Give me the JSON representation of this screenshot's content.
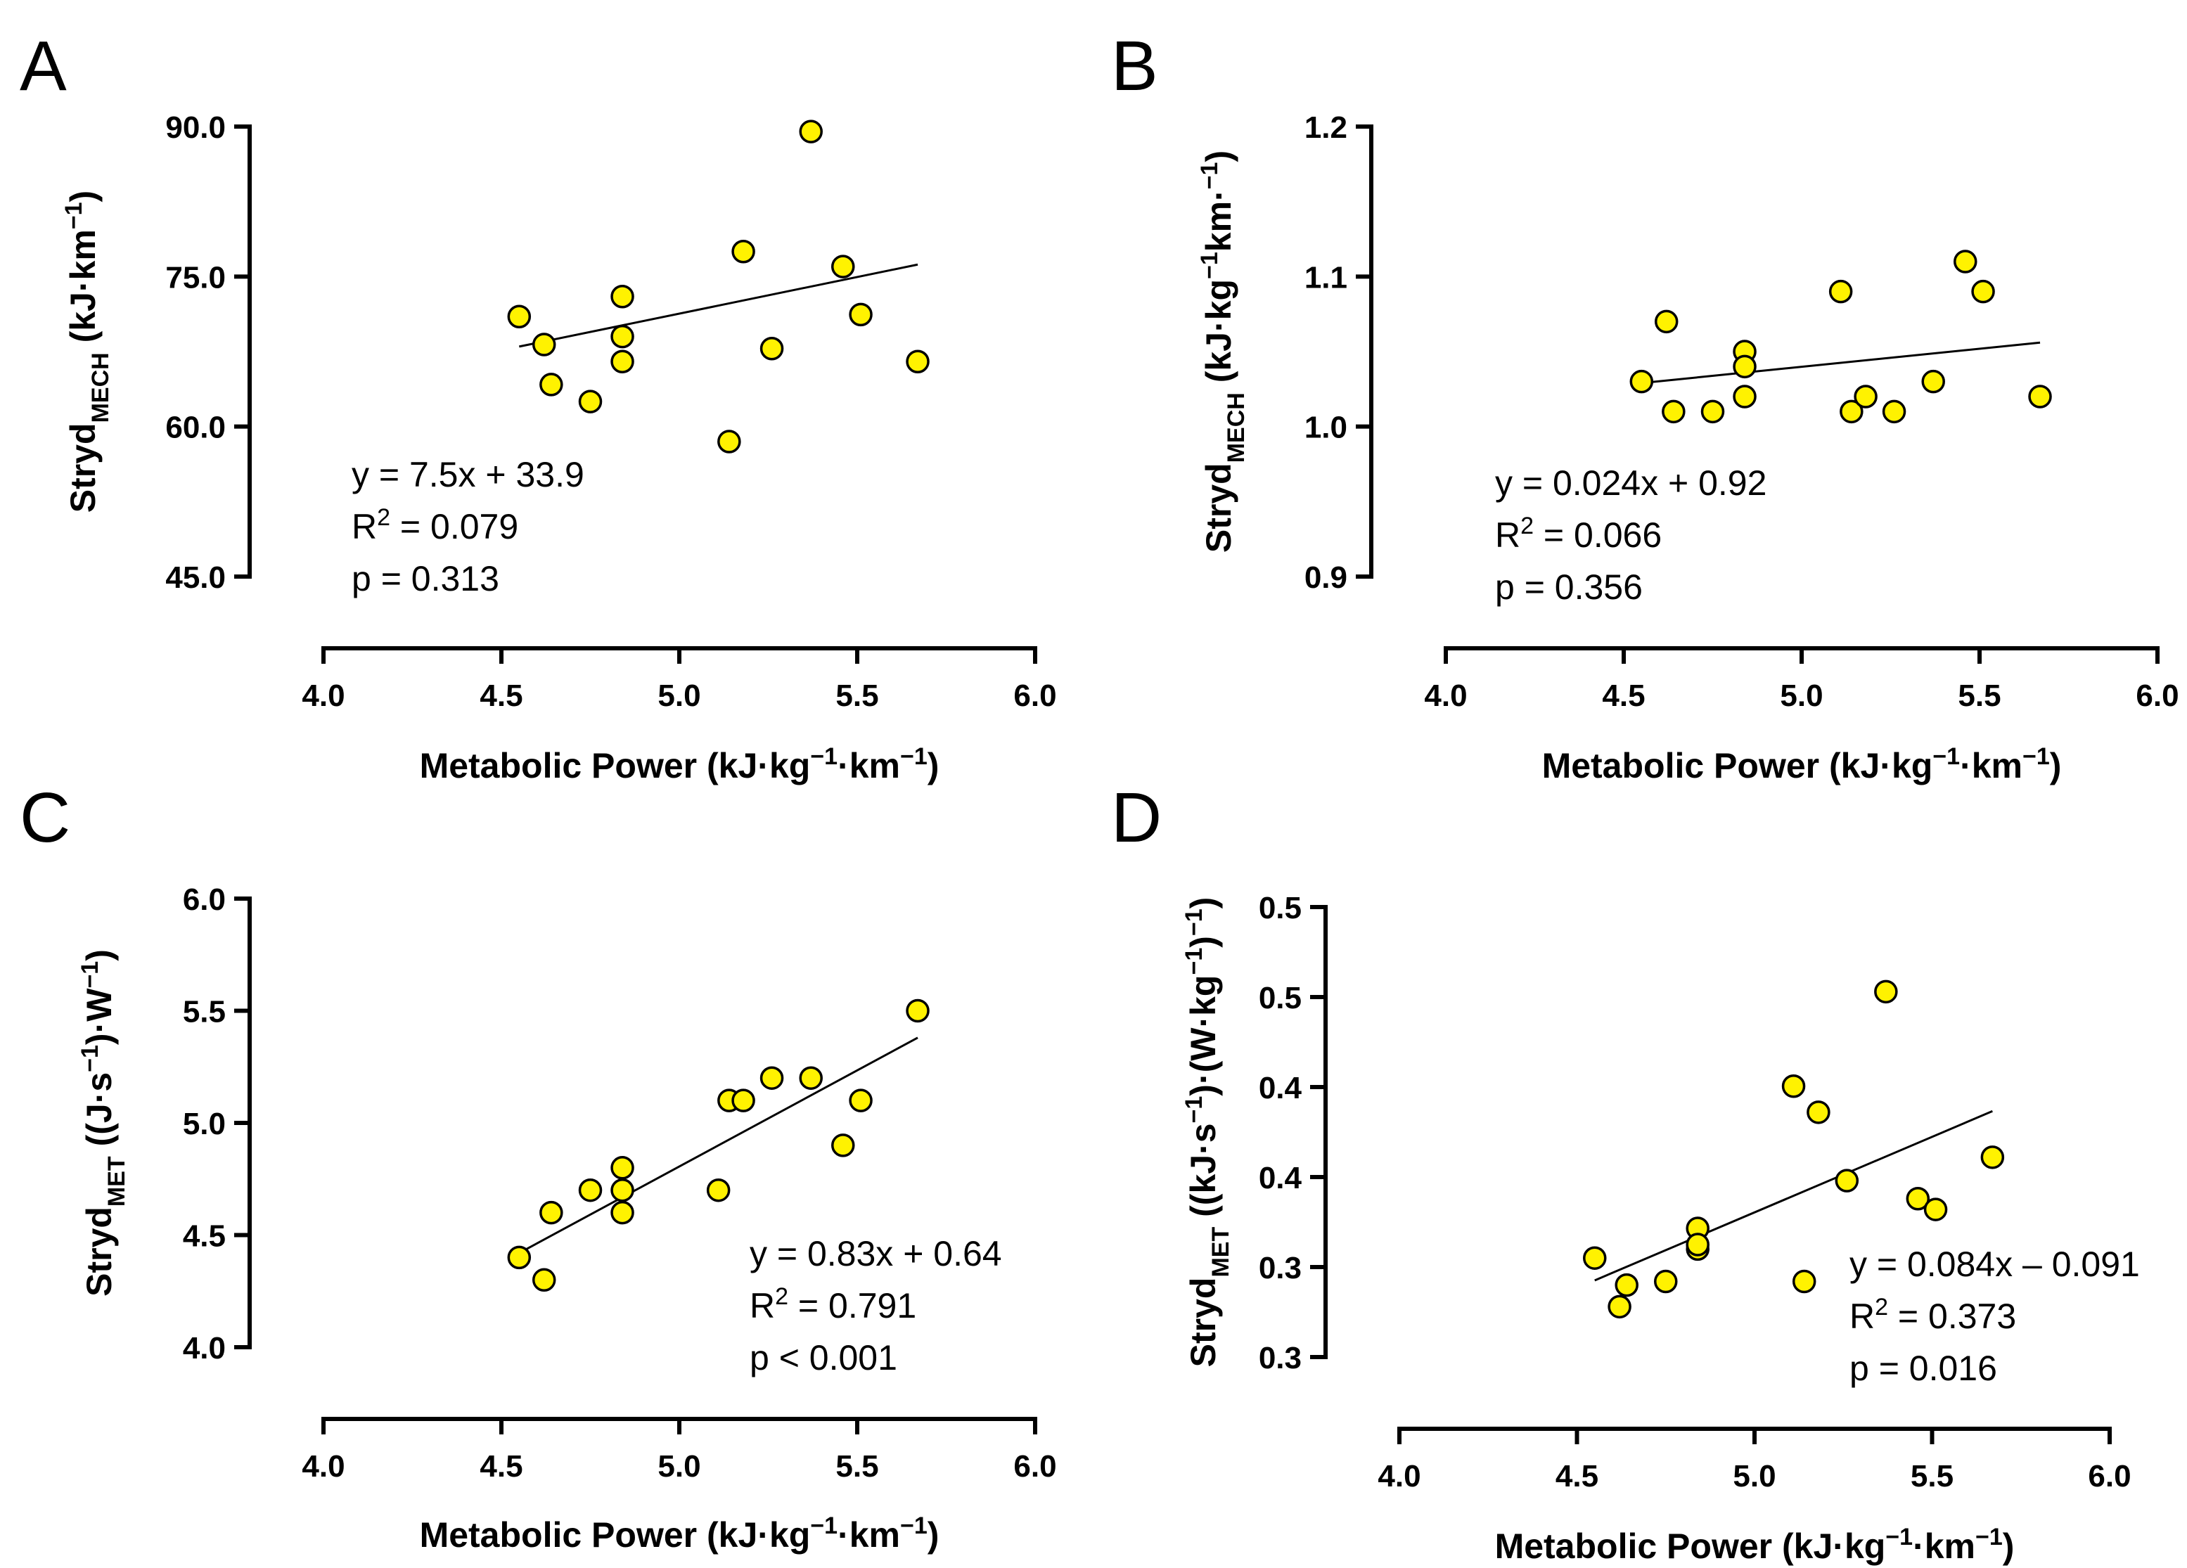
{
  "chart_data": [
    {
      "panel": "A",
      "type": "scatter",
      "xlabel": {
        "pre": "Metabolic Power (kJ",
        "dot1": "·",
        "mid1": "kg",
        "sup1": "−1",
        "dot2": "·",
        "mid2": "km",
        "sup2": "−1",
        "post": ")"
      },
      "ylabel": {
        "base": "Stryd",
        "sub": "MECH",
        "pre": " (kJ",
        "dot1": "·",
        "mid1": "km",
        "sup1": "−1",
        "post": ")"
      },
      "xlim": [
        4.0,
        6.0
      ],
      "ylim": [
        45.0,
        90.0
      ],
      "xticks": [
        "4.0",
        "4.5",
        "5.0",
        "5.5",
        "6.0"
      ],
      "yticks": [
        "45.0",
        "60.0",
        "75.0",
        "90.0"
      ],
      "points": [
        {
          "x": 4.55,
          "y": 71.0
        },
        {
          "x": 4.62,
          "y": 68.2
        },
        {
          "x": 4.64,
          "y": 64.2
        },
        {
          "x": 4.75,
          "y": 62.5
        },
        {
          "x": 4.84,
          "y": 73.0
        },
        {
          "x": 4.84,
          "y": 69.0
        },
        {
          "x": 4.84,
          "y": 66.5
        },
        {
          "x": 5.14,
          "y": 58.5
        },
        {
          "x": 5.18,
          "y": 77.5
        },
        {
          "x": 5.26,
          "y": 67.8
        },
        {
          "x": 5.37,
          "y": 89.5
        },
        {
          "x": 5.46,
          "y": 76.0
        },
        {
          "x": 5.51,
          "y": 71.2
        },
        {
          "x": 5.67,
          "y": 66.5
        }
      ],
      "fit": {
        "x": [
          4.55,
          5.67
        ],
        "y": [
          68.0,
          76.2
        ]
      },
      "annotation": {
        "equation": "y = 7.5x + 33.9",
        "r2_label": "R",
        "r2_sup": "2",
        "r2_value": " = 0.079",
        "p": "p = 0.313"
      }
    },
    {
      "panel": "B",
      "type": "scatter",
      "xlabel": {
        "pre": "Metabolic Power (kJ",
        "dot1": "·",
        "mid1": "kg",
        "sup1": "−1",
        "dot2": "·",
        "mid2": "km",
        "sup2": "−1",
        "post": ")"
      },
      "ylabel": {
        "base": "Stryd",
        "sub": "MECH",
        "pre": " (kJ",
        "dot1": "·",
        "mid1": "kg",
        "sup1": "−1",
        "dot2": "·",
        "mid2": "km",
        "sup2": "−1",
        "post": ")"
      },
      "xlim": [
        4.0,
        6.0
      ],
      "ylim": [
        0.9,
        1.2
      ],
      "xticks": [
        "4.0",
        "4.5",
        "5.0",
        "5.5",
        "6.0"
      ],
      "yticks": [
        "0.9",
        "1.0",
        "1.1",
        "1.2"
      ],
      "points": [
        {
          "x": 4.55,
          "y": 1.03
        },
        {
          "x": 4.62,
          "y": 1.07
        },
        {
          "x": 4.64,
          "y": 1.01
        },
        {
          "x": 4.75,
          "y": 1.01
        },
        {
          "x": 4.84,
          "y": 1.05
        },
        {
          "x": 4.84,
          "y": 1.04
        },
        {
          "x": 4.84,
          "y": 1.02
        },
        {
          "x": 5.11,
          "y": 1.09
        },
        {
          "x": 5.14,
          "y": 1.01
        },
        {
          "x": 5.18,
          "y": 1.02
        },
        {
          "x": 5.26,
          "y": 1.01
        },
        {
          "x": 5.37,
          "y": 1.03
        },
        {
          "x": 5.46,
          "y": 1.11
        },
        {
          "x": 5.51,
          "y": 1.09
        },
        {
          "x": 5.67,
          "y": 1.02
        }
      ],
      "fit": {
        "x": [
          4.55,
          5.67
        ],
        "y": [
          1.029,
          1.056
        ]
      },
      "annotation": {
        "equation": "y = 0.024x + 0.92",
        "r2_label": "R",
        "r2_sup": "2",
        "r2_value": " = 0.066",
        "p": "p = 0.356"
      }
    },
    {
      "panel": "C",
      "type": "scatter",
      "xlabel": {
        "pre": "Metabolic Power (kJ",
        "dot1": "·",
        "mid1": "kg",
        "sup1": "−1",
        "dot2": "·",
        "mid2": "km",
        "sup2": "−1",
        "post": ")"
      },
      "ylabel": {
        "base": "Stryd",
        "sub": "MET",
        "pre": " ((J",
        "dot1": "·",
        "mid1": "s",
        "sup1": "−1",
        "mid2": ")",
        "dot2": "·",
        "mid3": "W",
        "sup2": "−1",
        "post": ")"
      },
      "xlim": [
        4.0,
        6.0
      ],
      "ylim": [
        4.0,
        6.0
      ],
      "xticks": [
        "4.0",
        "4.5",
        "5.0",
        "5.5",
        "6.0"
      ],
      "yticks": [
        "4.0",
        "4.5",
        "5.0",
        "5.5",
        "6.0"
      ],
      "points": [
        {
          "x": 4.55,
          "y": 4.4
        },
        {
          "x": 4.62,
          "y": 4.3
        },
        {
          "x": 4.64,
          "y": 4.6
        },
        {
          "x": 4.75,
          "y": 4.7
        },
        {
          "x": 4.84,
          "y": 4.8
        },
        {
          "x": 4.84,
          "y": 4.7
        },
        {
          "x": 4.84,
          "y": 4.6
        },
        {
          "x": 5.11,
          "y": 4.7
        },
        {
          "x": 5.14,
          "y": 5.1
        },
        {
          "x": 5.18,
          "y": 5.1
        },
        {
          "x": 5.26,
          "y": 5.2
        },
        {
          "x": 5.37,
          "y": 5.2
        },
        {
          "x": 5.46,
          "y": 4.9
        },
        {
          "x": 5.51,
          "y": 5.1
        },
        {
          "x": 5.67,
          "y": 5.5
        }
      ],
      "fit": {
        "x": [
          4.55,
          5.67
        ],
        "y": [
          4.42,
          5.38
        ]
      },
      "annotation": {
        "equation": "y = 0.83x + 0.64",
        "r2_label": "R",
        "r2_sup": "2",
        "r2_value": " = 0.791",
        "p": "p < 0.001"
      }
    },
    {
      "panel": "D",
      "type": "scatter",
      "xlabel": {
        "pre": "Metabolic Power (kJ",
        "dot1": "·",
        "mid1": "kg",
        "sup1": "−1",
        "dot2": "·",
        "mid2": "km",
        "sup2": "−1",
        "post": ")"
      },
      "ylabel": {
        "base": "Stryd",
        "sub": "MET",
        "pre": " ((kJ",
        "dot1": "·",
        "mid1": "s",
        "sup1": "−1",
        "mid2": ")",
        "dot2": "·",
        "mid3": "(W",
        "dot3": "·",
        "mid4": "kg",
        "sup2": "−1",
        "mid5": ")",
        "sup3": "−1",
        "post": ")"
      },
      "xlim": [
        4.0,
        6.0
      ],
      "ylim": [
        0.25,
        0.5
      ],
      "xticks": [
        "4.0",
        "4.5",
        "5.0",
        "5.5",
        "6.0"
      ],
      "yticks": [
        "0.3",
        "0.3",
        "0.4",
        "0.4",
        "0.5",
        "0.5"
      ],
      "points": [
        {
          "x": 4.55,
          "y": 0.305
        },
        {
          "x": 4.62,
          "y": 0.278
        },
        {
          "x": 4.64,
          "y": 0.29
        },
        {
          "x": 4.75,
          "y": 0.292
        },
        {
          "x": 4.84,
          "y": 0.3215
        },
        {
          "x": 4.84,
          "y": 0.31
        },
        {
          "x": 4.84,
          "y": 0.3125
        },
        {
          "x": 5.11,
          "y": 0.4005
        },
        {
          "x": 5.14,
          "y": 0.292
        },
        {
          "x": 5.18,
          "y": 0.386
        },
        {
          "x": 5.26,
          "y": 0.348
        },
        {
          "x": 5.37,
          "y": 0.453
        },
        {
          "x": 5.46,
          "y": 0.338
        },
        {
          "x": 5.51,
          "y": 0.332
        },
        {
          "x": 5.67,
          "y": 0.361
        }
      ],
      "fit": {
        "x": [
          4.55,
          5.67
        ],
        "y": [
          0.2926,
          0.3866
        ]
      },
      "annotation": {
        "equation": "y = 0.084x – 0.091",
        "r2_label": "R",
        "r2_sup": "2",
        "r2_value": " = 0.373",
        "p": "p = 0.016"
      }
    }
  ]
}
